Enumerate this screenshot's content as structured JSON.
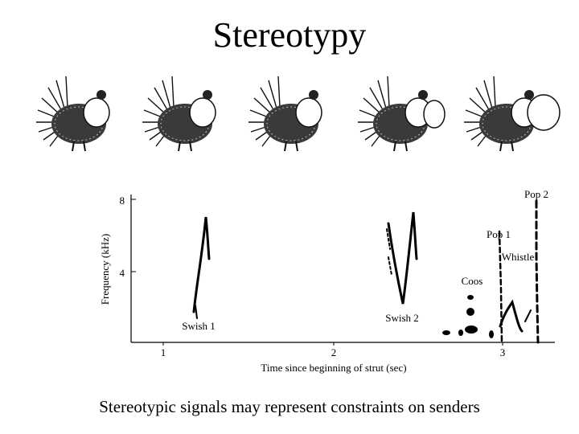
{
  "slide": {
    "title": "Stereotypy",
    "caption": "Stereotypic signals may represent constraints on senders"
  },
  "illustration": {
    "subject": "strutting sage grouse",
    "frames": [
      "strut-pose-1",
      "strut-pose-2",
      "strut-pose-3",
      "strut-pose-4",
      "strut-pose-5"
    ]
  },
  "spectrogram": {
    "ylabel": "Frequency (kHz)",
    "xlabel": "Time since beginning of strut (sec)",
    "y_ticks": [
      "8",
      "4"
    ],
    "x_ticks": [
      "1",
      "2",
      "3"
    ],
    "annotations": [
      "Swish 1",
      "Swish 2",
      "Coos",
      "Pop 1",
      "Whistle",
      "Pop 2"
    ]
  }
}
